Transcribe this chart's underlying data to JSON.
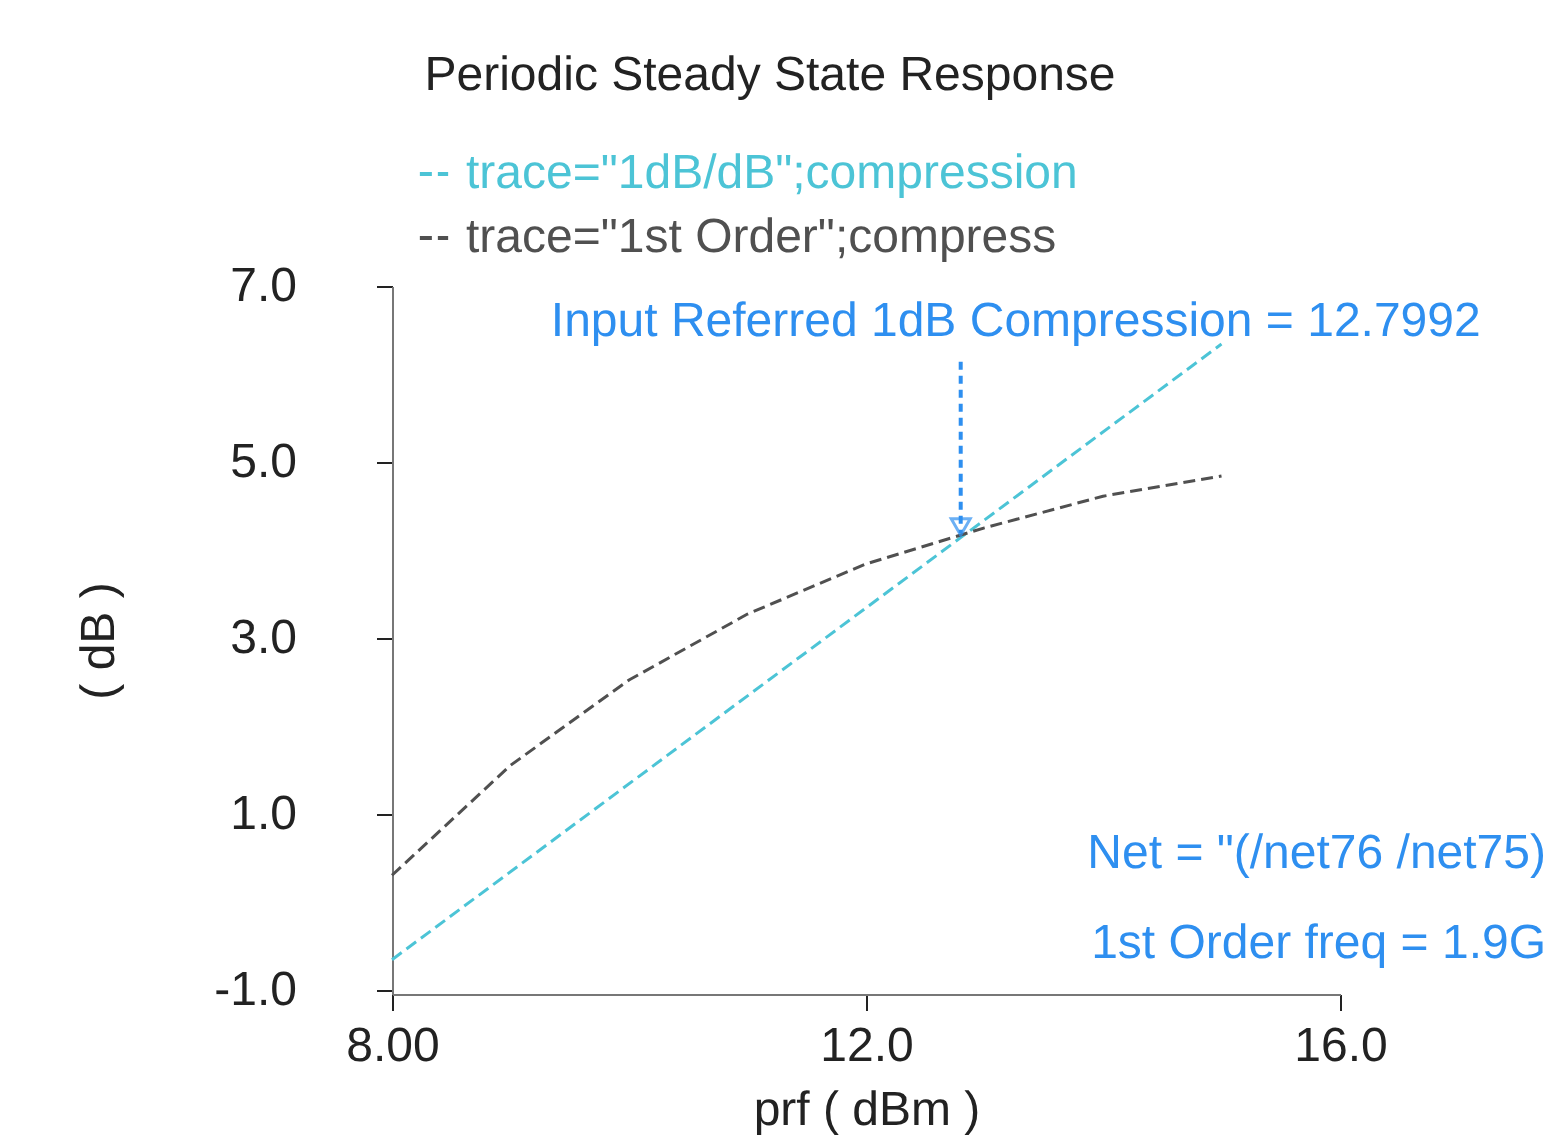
{
  "chart_data": {
    "type": "line",
    "title": "Periodic Steady State Response",
    "xlabel": "prf ( dBm )",
    "ylabel": "( dB )",
    "x": [
      8,
      9,
      10,
      11,
      12,
      13,
      14,
      15
    ],
    "series": [
      {
        "name": "trace=\"1dB/dB\";compression",
        "color": "#4cc4d6",
        "x": [
          8,
          15
        ],
        "values": [
          -0.66,
          6.34
        ]
      },
      {
        "name": "trace=\"1st Order\";compress",
        "color": "#505050",
        "values": [
          0.3,
          1.55,
          2.52,
          3.27,
          3.84,
          4.25,
          4.61,
          4.84
        ]
      }
    ],
    "xlim": [
      8,
      16
    ],
    "ylim": [
      -1.05,
      7.0
    ],
    "xticks": [
      {
        "value": 8,
        "label": "8.00"
      },
      {
        "value": 12,
        "label": "12.0"
      },
      {
        "value": 16,
        "label": "16.0"
      }
    ],
    "yticks": [
      {
        "value": -1,
        "label": "-1.0"
      },
      {
        "value": 1,
        "label": "1.0"
      },
      {
        "value": 3,
        "label": "3.0"
      },
      {
        "value": 5,
        "label": "5.0"
      },
      {
        "value": 7,
        "label": "7.0"
      }
    ],
    "line_style": "dashed",
    "legend": "top",
    "grid": false,
    "annotations": [
      {
        "text": "Input Referred 1dB Compression = 12.7992",
        "x": 12.7992,
        "y": 4.14
      },
      "Net = \"(/net76 /net75)",
      "1st Order freq = 1.9G"
    ]
  }
}
